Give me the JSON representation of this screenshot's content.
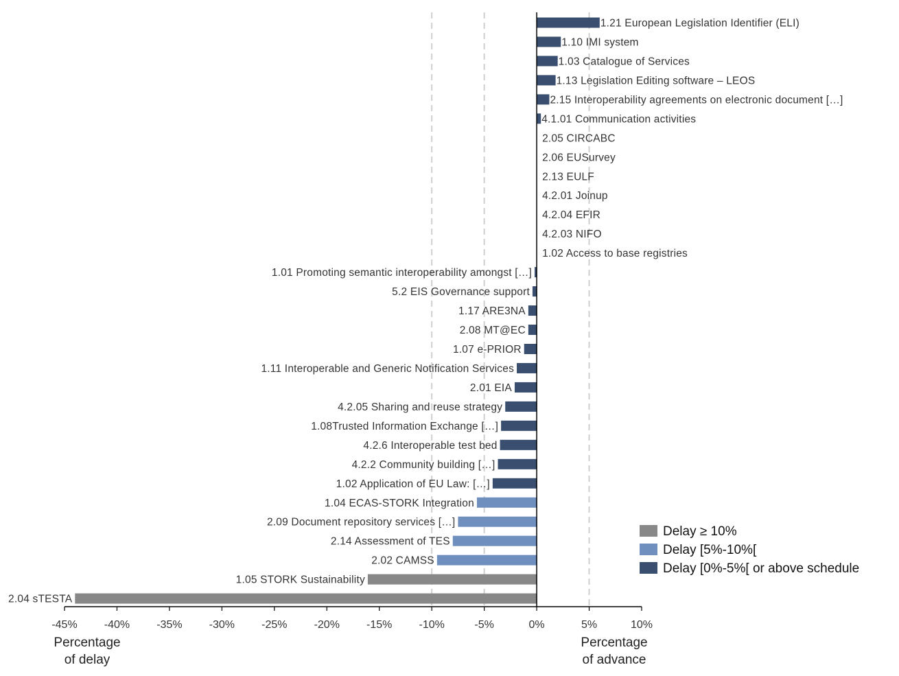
{
  "chart_data": {
    "type": "bar",
    "orientation": "horizontal",
    "xlim": [
      -45,
      10
    ],
    "x_ticks": [
      "-45%",
      "-40%",
      "-35%",
      "-30%",
      "-25%",
      "-20%",
      "-15%",
      "-10%",
      "-5%",
      "0%",
      "5%",
      "10%"
    ],
    "x_tick_values": [
      -45,
      -40,
      -35,
      -30,
      -25,
      -20,
      -15,
      -10,
      -5,
      0,
      5,
      10
    ],
    "reference_lines": [
      -10,
      -5,
      5
    ],
    "xlabel_left": [
      "Percentage",
      "of delay"
    ],
    "xlabel_right": [
      "Percentage",
      "of advance"
    ],
    "colors": {
      "delay_10_plus": "#888888",
      "delay_5_10": "#6f8fbf",
      "delay_0_5": "#3a4f70"
    },
    "legend": [
      {
        "label": "Delay ≥ 10%",
        "category": "delay_10_plus"
      },
      {
        "label": "Delay [5%-10%[",
        "category": "delay_5_10"
      },
      {
        "label": "Delay [0%-5%[ or above schedule",
        "category": "delay_0_5"
      }
    ],
    "bars": [
      {
        "label": "1.21 European Legislation Identifier (ELI)",
        "value": 6.0,
        "category": "delay_0_5"
      },
      {
        "label": "1.10 IMI system",
        "value": 2.3,
        "category": "delay_0_5"
      },
      {
        "label": "1.03 Catalogue of Services",
        "value": 2.0,
        "category": "delay_0_5"
      },
      {
        "label": "1.13 Legislation Editing software – LEOS",
        "value": 1.8,
        "category": "delay_0_5"
      },
      {
        "label": "2.15 Interoperability agreements on electronic document […]",
        "value": 1.2,
        "category": "delay_0_5"
      },
      {
        "label": "4.1.01 Communication activities",
        "value": 0.4,
        "category": "delay_0_5"
      },
      {
        "label": "2.05 CIRCABC",
        "value": 0,
        "category": "delay_0_5"
      },
      {
        "label": "2.06 EUSurvey",
        "value": 0,
        "category": "delay_0_5"
      },
      {
        "label": "2.13 EULF",
        "value": 0,
        "category": "delay_0_5"
      },
      {
        "label": "4.2.01 Joinup",
        "value": 0,
        "category": "delay_0_5"
      },
      {
        "label": "4.2.04 EFIR",
        "value": 0,
        "category": "delay_0_5"
      },
      {
        "label": "4.2.03 NIFO",
        "value": 0,
        "category": "delay_0_5"
      },
      {
        "label": "1.02 Access to base registries",
        "value": 0,
        "category": "delay_0_5"
      },
      {
        "label": "1.01 Promoting semantic interoperability amongst […]",
        "value": -0.2,
        "category": "delay_0_5"
      },
      {
        "label": "5.2 EIS Governance support",
        "value": -0.4,
        "category": "delay_0_5"
      },
      {
        "label": "1.17 ARE3NA",
        "value": -0.8,
        "category": "delay_0_5"
      },
      {
        "label": "2.08 MT@EC",
        "value": -0.8,
        "category": "delay_0_5"
      },
      {
        "label": "1.07 e-PRIOR",
        "value": -1.2,
        "category": "delay_0_5"
      },
      {
        "label": "1.11 Interoperable and Generic Notification Services",
        "value": -1.9,
        "category": "delay_0_5"
      },
      {
        "label": "2.01 EIA",
        "value": -2.1,
        "category": "delay_0_5"
      },
      {
        "label": "4.2.05 Sharing and reuse strategy",
        "value": -3.0,
        "category": "delay_0_5"
      },
      {
        "label": "1.08Trusted Information Exchange […]",
        "value": -3.4,
        "category": "delay_0_5"
      },
      {
        "label": "4.2.6 Interoperable test bed",
        "value": -3.5,
        "category": "delay_0_5"
      },
      {
        "label": "4.2.2 Community building […]",
        "value": -3.7,
        "category": "delay_0_5"
      },
      {
        "label": "1.02 Application of EU Law: […]",
        "value": -4.2,
        "category": "delay_0_5"
      },
      {
        "label": "1.04 ECAS-STORK Integration",
        "value": -5.7,
        "category": "delay_5_10"
      },
      {
        "label": "2.09 Document repository services […]",
        "value": -7.5,
        "category": "delay_5_10"
      },
      {
        "label": "2.14 Assessment of TES",
        "value": -8.0,
        "category": "delay_5_10"
      },
      {
        "label": "2.02 CAMSS",
        "value": -9.5,
        "category": "delay_5_10"
      },
      {
        "label": "1.05 STORK Sustainability",
        "value": -16.1,
        "category": "delay_10_plus"
      },
      {
        "label": "2.04 sTESTA",
        "value": -44.0,
        "category": "delay_10_plus"
      }
    ]
  }
}
